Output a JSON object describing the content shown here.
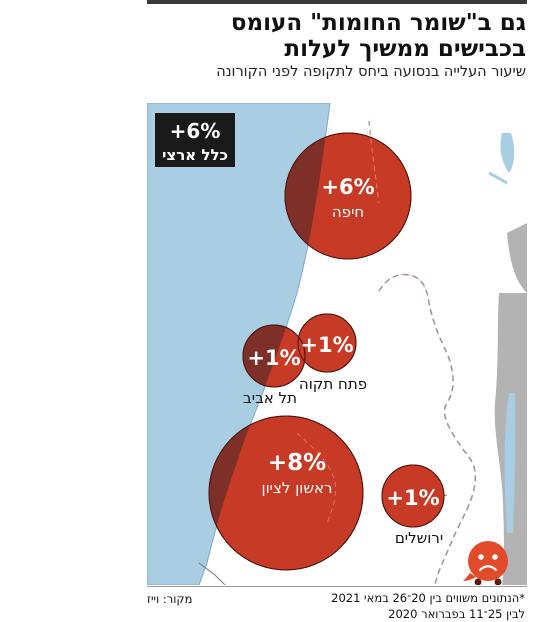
{
  "header": {
    "title": "גם ב\"שומר החומות\" העומס בכבישים ממשיך לעלות",
    "subtitle": "שיעור העלייה בנסועה ביחס לתקופה לפני הקורונה"
  },
  "national": {
    "value": "+6%",
    "label": "כלל ארצי"
  },
  "cities": [
    {
      "name": "חיפה",
      "change": "+6%",
      "change_value": 6
    },
    {
      "name": "פתח תקוה",
      "change": "+1%",
      "change_value": 1
    },
    {
      "name": "תל אביב",
      "change": "+1%",
      "change_value": 1
    },
    {
      "name": "ראשון לציון",
      "change": "+8%",
      "change_value": 8
    },
    {
      "name": "ירושלים",
      "change": "+1%",
      "change_value": 1
    }
  ],
  "footnote": {
    "line1": "*הנתונים משווים בין 20־26 במאי 2021",
    "line2": "לבין 25־11 בפברואר 2020"
  },
  "source": "מקור: וייז",
  "logo": {
    "icon": "waze-icon"
  },
  "colors": {
    "sea": "#a9cde3",
    "land": "#ffffff",
    "east": "#b3b3b3",
    "bubble": "#c73a26",
    "bubble_over_sea": "#7e2f28",
    "badge": "#1a1a1a",
    "waze": "#e24a2c"
  }
}
